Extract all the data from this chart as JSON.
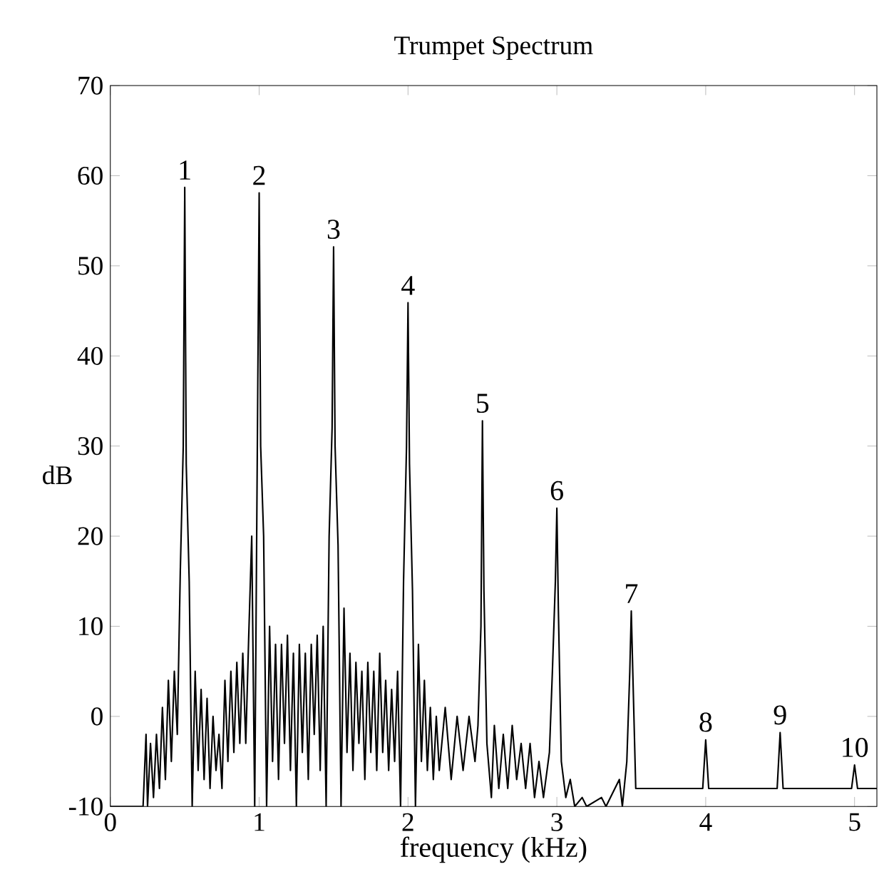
{
  "chart_data": {
    "type": "line",
    "title": "Trumpet Spectrum",
    "xlabel": "frequency (kHz)",
    "ylabel": "dB",
    "xlim": [
      0,
      5.15
    ],
    "ylim": [
      -10,
      70
    ],
    "xticks": [
      0,
      1,
      2,
      3,
      4,
      5
    ],
    "yticks": [
      -10,
      0,
      10,
      20,
      30,
      40,
      50,
      60,
      70
    ],
    "grid": false,
    "marker": "none",
    "line_style": "solid",
    "series": [
      {
        "color": "#000000",
        "x": [
          0,
          0.22,
          0.24,
          0.25,
          0.27,
          0.29,
          0.31,
          0.33,
          0.35,
          0.37,
          0.39,
          0.41,
          0.43,
          0.45,
          0.47,
          0.49,
          0.5,
          0.51,
          0.53,
          0.55,
          0.57,
          0.59,
          0.61,
          0.63,
          0.65,
          0.67,
          0.69,
          0.71,
          0.73,
          0.75,
          0.77,
          0.79,
          0.81,
          0.83,
          0.85,
          0.87,
          0.89,
          0.91,
          0.93,
          0.95,
          0.97,
          0.99,
          1.0,
          1.01,
          1.03,
          1.05,
          1.07,
          1.09,
          1.11,
          1.13,
          1.15,
          1.17,
          1.19,
          1.21,
          1.23,
          1.25,
          1.27,
          1.29,
          1.31,
          1.33,
          1.35,
          1.37,
          1.39,
          1.41,
          1.43,
          1.45,
          1.47,
          1.49,
          1.5,
          1.51,
          1.53,
          1.55,
          1.57,
          1.59,
          1.61,
          1.63,
          1.65,
          1.67,
          1.69,
          1.71,
          1.73,
          1.75,
          1.77,
          1.79,
          1.81,
          1.83,
          1.85,
          1.87,
          1.89,
          1.91,
          1.93,
          1.95,
          1.97,
          1.99,
          2.0,
          2.01,
          2.03,
          2.05,
          2.07,
          2.09,
          2.11,
          2.13,
          2.15,
          2.17,
          2.19,
          2.21,
          2.25,
          2.29,
          2.33,
          2.37,
          2.41,
          2.45,
          2.47,
          2.49,
          2.5,
          2.51,
          2.53,
          2.56,
          2.58,
          2.61,
          2.64,
          2.67,
          2.7,
          2.73,
          2.76,
          2.79,
          2.82,
          2.85,
          2.88,
          2.91,
          2.95,
          2.97,
          2.99,
          3.0,
          3.01,
          3.03,
          3.06,
          3.09,
          3.12,
          3.17,
          3.2,
          3.3,
          3.33,
          3.42,
          3.44,
          3.47,
          3.49,
          3.5,
          3.51,
          3.53,
          3.98,
          4.0,
          4.02,
          4.48,
          4.5,
          4.52,
          4.98,
          5.0,
          5.02,
          5.15
        ],
        "values": [
          -10,
          -10,
          -2,
          -10,
          -3,
          -9,
          -2,
          -8,
          1,
          -7,
          4,
          -5,
          5,
          -2,
          16,
          30,
          58.7,
          28,
          15,
          -10,
          5,
          -6,
          3,
          -7,
          2,
          -8,
          0,
          -6,
          -2,
          -8,
          4,
          -5,
          5,
          -4,
          6,
          -3,
          7,
          -3,
          9,
          20,
          -10,
          35,
          58.1,
          30,
          20,
          -10,
          10,
          -5,
          8,
          -7,
          8,
          -3,
          9,
          -6,
          7,
          -10,
          8,
          -4,
          7,
          -7,
          8,
          -2,
          9,
          -6,
          10,
          -10,
          20,
          32,
          52.1,
          30,
          19,
          -10,
          12,
          -4,
          7,
          -6,
          6,
          -3,
          5,
          -7,
          6,
          -4,
          5,
          -6,
          7,
          -4,
          4,
          -6,
          3,
          -5,
          5,
          -10,
          15,
          30,
          45.9,
          28,
          14,
          -10,
          8,
          -5,
          4,
          -6,
          1,
          -7,
          0,
          -6,
          1,
          -7,
          0,
          -6,
          0,
          -5,
          -1,
          10,
          32.8,
          14,
          -3,
          -9,
          -1,
          -8,
          -2,
          -8,
          -1,
          -7,
          -3,
          -8,
          -3,
          -9,
          -5,
          -9,
          -4,
          5,
          15,
          23.1,
          12,
          -5,
          -9,
          -7,
          -10,
          -9,
          -10,
          -9,
          -10,
          -7,
          -10,
          -5,
          5,
          11.7,
          5,
          -8,
          -8,
          -2.6,
          -8,
          -8,
          -1.8,
          -8,
          -8,
          -5.4,
          -8,
          -8
        ]
      }
    ],
    "annotations": [
      {
        "text": "1",
        "x": 0.5,
        "y": 58.7
      },
      {
        "text": "2",
        "x": 1.0,
        "y": 58.1
      },
      {
        "text": "3",
        "x": 1.5,
        "y": 52.1
      },
      {
        "text": "4",
        "x": 2.0,
        "y": 45.9
      },
      {
        "text": "5",
        "x": 2.5,
        "y": 32.8
      },
      {
        "text": "6",
        "x": 3.0,
        "y": 23.1
      },
      {
        "text": "7",
        "x": 3.5,
        "y": 11.7
      },
      {
        "text": "8",
        "x": 4.0,
        "y": -2.6
      },
      {
        "text": "9",
        "x": 4.5,
        "y": -1.8
      },
      {
        "text": "10",
        "x": 5.0,
        "y": -5.4
      }
    ]
  }
}
